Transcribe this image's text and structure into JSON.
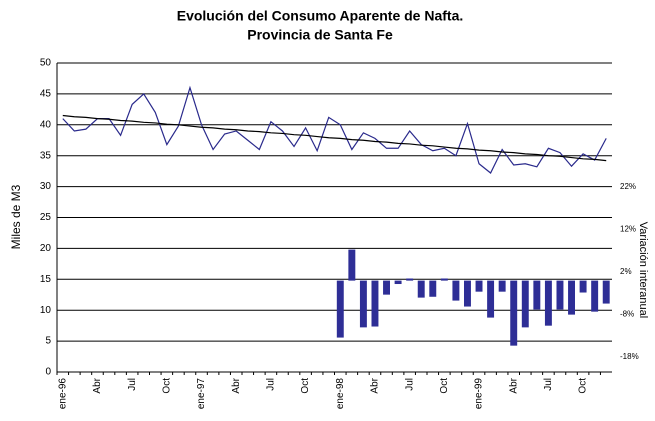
{
  "chart_data": {
    "type": "line",
    "title": "Evolución del Consumo Aparente de Nafta.",
    "subtitle": "Provincia de Santa Fe",
    "y_label": "Miles de M3",
    "y2_label": "Variación interanual",
    "categories": [
      "ene-96",
      null,
      null,
      "Abr",
      null,
      null,
      "Jul",
      null,
      null,
      "Oct",
      null,
      null,
      "ene-97",
      null,
      null,
      "Abr",
      null,
      null,
      "Jul",
      null,
      null,
      "Oct",
      null,
      null,
      "ene-98",
      null,
      null,
      "Abr",
      null,
      null,
      "Jul",
      null,
      null,
      "Oct",
      null,
      null,
      "ene-99",
      null,
      null,
      "Abr",
      null,
      null,
      "Jul",
      null,
      null,
      "Oct",
      null,
      null
    ],
    "series": [
      {
        "type": "line",
        "color": "#2a2a8c",
        "values": [
          41,
          39,
          39.3,
          41,
          41,
          38.3,
          43.3,
          45,
          42,
          36.8,
          39.8,
          46,
          40,
          36,
          38.5,
          39,
          37.5,
          36,
          40.5,
          39,
          36.5,
          39.5,
          35.8,
          41.2,
          40,
          36,
          38.7,
          37.8,
          36.2,
          36.2,
          39,
          36.8,
          35.8,
          36.2,
          35,
          40.2,
          33.7,
          32.2,
          36,
          33.5,
          33.7,
          33.2,
          36.2,
          35.5,
          33.3,
          35.3,
          34.3,
          37.8
        ]
      },
      {
        "type": "line",
        "color": "#000000",
        "values": [
          41.5,
          41.3,
          41.2,
          41.0,
          40.9,
          40.7,
          40.6,
          40.4,
          40.3,
          40.1,
          40.0,
          39.8,
          39.6,
          39.5,
          39.3,
          39.2,
          39.0,
          38.9,
          38.7,
          38.6,
          38.4,
          38.3,
          38.1,
          37.9,
          37.8,
          37.6,
          37.5,
          37.3,
          37.2,
          37.0,
          36.9,
          36.7,
          36.6,
          36.4,
          36.2,
          36.1,
          35.9,
          35.8,
          35.6,
          35.5,
          35.3,
          35.2,
          35.0,
          34.9,
          34.7,
          34.5,
          34.4,
          34.2
        ]
      },
      {
        "type": "bar",
        "axis": "y2",
        "color": "#2e2e96",
        "values": [
          null,
          null,
          null,
          null,
          null,
          null,
          null,
          null,
          null,
          null,
          null,
          null,
          null,
          null,
          null,
          null,
          null,
          null,
          null,
          null,
          null,
          null,
          null,
          null,
          -13.4,
          7.3,
          -11,
          -10.8,
          -3.3,
          -0.8,
          0.5,
          -4,
          -3.8,
          0.5,
          -4.7,
          -6.1,
          -2.6,
          -8.7,
          -2.6,
          -15.3,
          -11,
          -6.8,
          -10.6,
          -6.8,
          -8,
          -2.8,
          -7.3,
          -5.4
        ]
      }
    ],
    "ylim": [
      0,
      50
    ],
    "yticks": [
      0,
      5,
      10,
      15,
      20,
      25,
      30,
      35,
      40,
      45,
      50
    ],
    "y2lim": [
      -21.5,
      51.2
    ],
    "y2ticks": [
      {
        "value": 22,
        "label": "22%"
      },
      {
        "value": 12,
        "label": "12%"
      },
      {
        "value": 2,
        "label": "2%"
      },
      {
        "value": -8,
        "label": "-8%"
      },
      {
        "value": -18,
        "label": "-18%"
      }
    ],
    "grid": true
  }
}
